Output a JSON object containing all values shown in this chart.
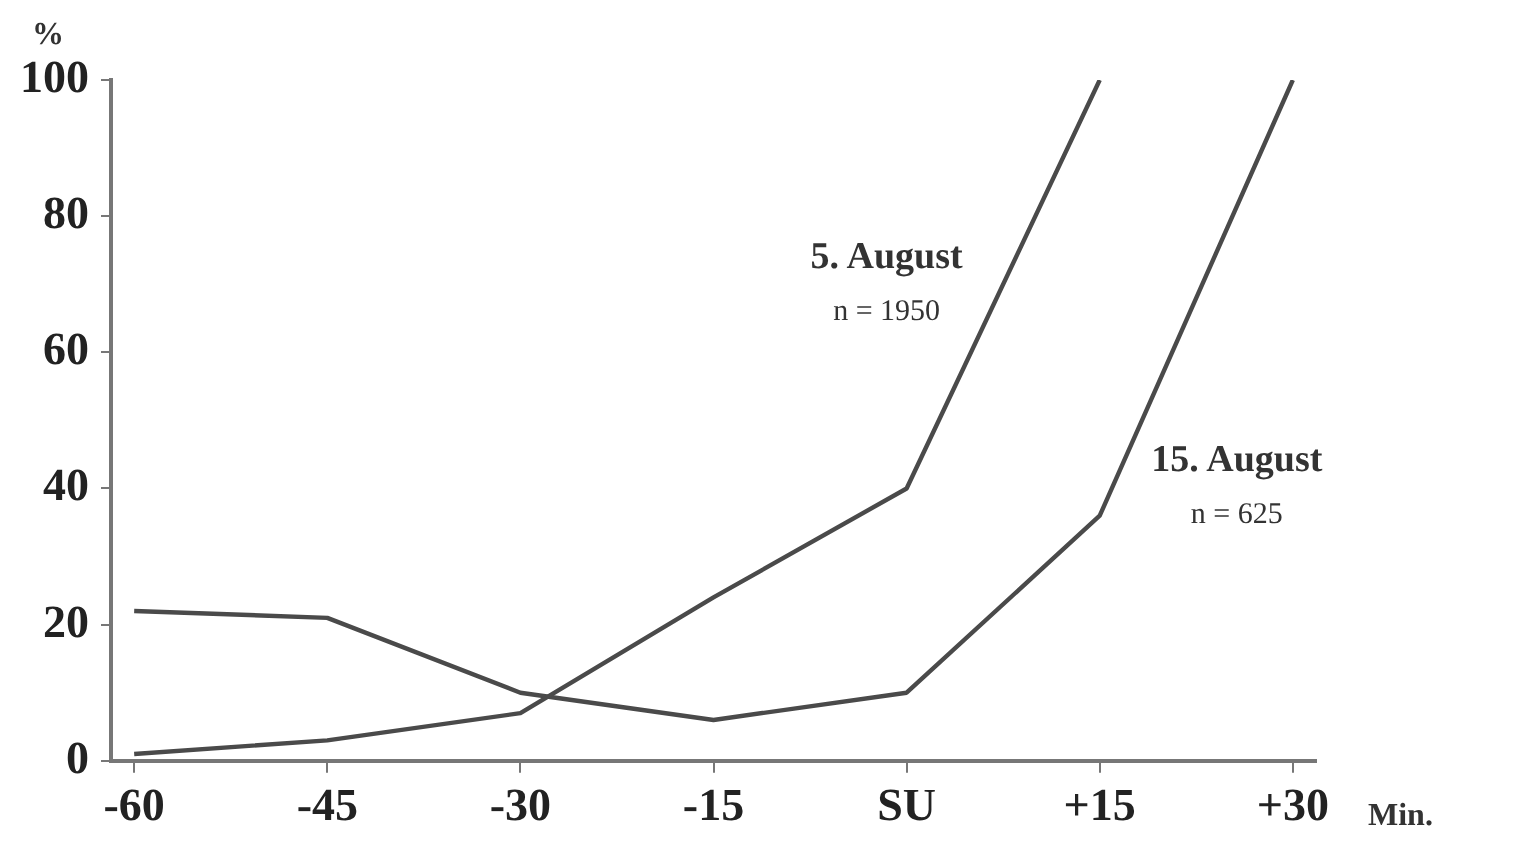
{
  "chart_data": {
    "type": "line",
    "ylabel": "%",
    "xlabel": "Min.",
    "categories": [
      "-60",
      "-45",
      "-30",
      "-15",
      "SU",
      "+15",
      "+30"
    ],
    "series": [
      {
        "name": "5. August",
        "color": "#4a4a4a",
        "values": [
          1,
          3,
          7,
          24,
          40,
          100,
          null
        ]
      },
      {
        "name": "15. August",
        "color": "#4a4a4a",
        "values": [
          22,
          21,
          10,
          6,
          10,
          36,
          100
        ]
      }
    ],
    "annotations": [
      "n = 1950",
      "n = 625"
    ],
    "ylim": [
      0,
      100
    ],
    "yticks": [
      0,
      20,
      40,
      60,
      80,
      100
    ],
    "grid": false,
    "legend": false,
    "marker": "none",
    "line_style": "solid"
  }
}
